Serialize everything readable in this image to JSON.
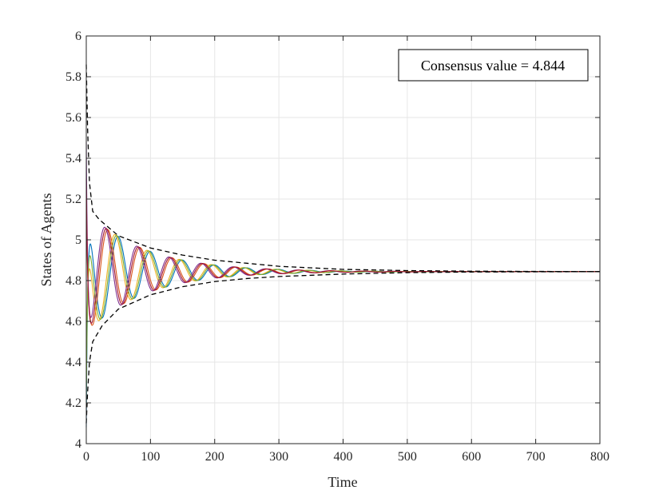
{
  "chart_data": {
    "type": "line",
    "title": "",
    "xlabel": "Time",
    "ylabel": "States of Agents",
    "xlim": [
      0,
      800
    ],
    "ylim": [
      4,
      6
    ],
    "xticks": [
      "0",
      "100",
      "200",
      "300",
      "400",
      "500",
      "600",
      "700",
      "800"
    ],
    "yticks": [
      "4",
      "4.2",
      "4.4",
      "4.6",
      "4.8",
      "5",
      "5.2",
      "5.4",
      "5.6",
      "5.8",
      "6"
    ],
    "grid": true,
    "annotation": "Consensus value = 4.844",
    "consensus_value": 4.844,
    "series": [
      {
        "color": "#0072bd",
        "initial": 4.08,
        "amplitude": 0.3,
        "period": 50,
        "phase": 0.0,
        "decay": 90
      },
      {
        "color": "#d95319",
        "initial": 5.2,
        "amplitude": 0.3,
        "period": 50,
        "phase": 2.0,
        "decay": 90
      },
      {
        "color": "#edb120",
        "initial": 4.3,
        "amplitude": 0.3,
        "period": 50,
        "phase": 0.6,
        "decay": 90
      },
      {
        "color": "#7e2f8e",
        "initial": 5.48,
        "amplitude": 0.3,
        "period": 50,
        "phase": 2.6,
        "decay": 90
      },
      {
        "color": "#77ac30",
        "initial": 4.2,
        "amplitude": 0.3,
        "period": 50,
        "phase": 0.3,
        "decay": 90
      },
      {
        "color": "#a2142f",
        "initial": 5.3,
        "amplitude": 0.3,
        "period": 50,
        "phase": 2.3,
        "decay": 90
      }
    ],
    "envelope": {
      "style": "dashed",
      "color": "#000000",
      "upper": [
        [
          0,
          5.86
        ],
        [
          2,
          5.55
        ],
        [
          5,
          5.28
        ],
        [
          10,
          5.14
        ],
        [
          20,
          5.1
        ],
        [
          50,
          5.02
        ],
        [
          100,
          4.96
        ],
        [
          150,
          4.925
        ],
        [
          200,
          4.9
        ],
        [
          250,
          4.885
        ],
        [
          300,
          4.87
        ],
        [
          400,
          4.855
        ],
        [
          500,
          4.849
        ],
        [
          600,
          4.846
        ],
        [
          700,
          4.845
        ],
        [
          800,
          4.844
        ]
      ],
      "lower": [
        [
          0,
          4.1
        ],
        [
          2,
          4.25
        ],
        [
          5,
          4.4
        ],
        [
          10,
          4.5
        ],
        [
          25,
          4.58
        ],
        [
          50,
          4.66
        ],
        [
          100,
          4.73
        ],
        [
          150,
          4.77
        ],
        [
          200,
          4.795
        ],
        [
          250,
          4.81
        ],
        [
          300,
          4.82
        ],
        [
          400,
          4.832
        ],
        [
          500,
          4.839
        ],
        [
          600,
          4.842
        ],
        [
          700,
          4.843
        ],
        [
          800,
          4.844
        ]
      ]
    }
  }
}
